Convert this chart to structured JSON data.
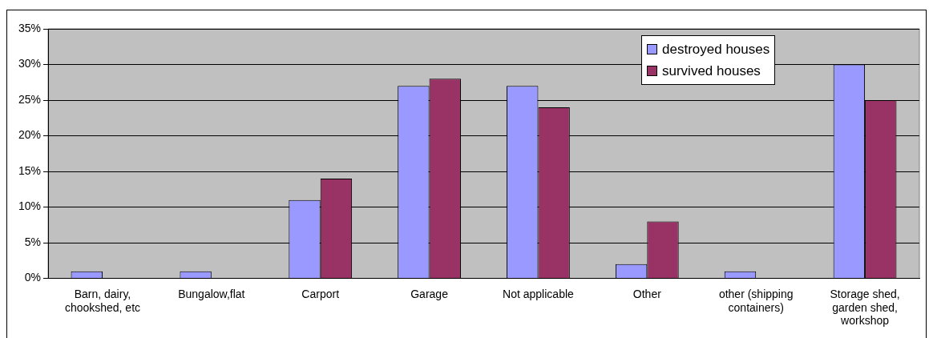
{
  "chart_data": {
    "type": "bar",
    "categories": [
      "Barn, dairy, chookshed, etc",
      "Bungalow,flat",
      "Carport",
      "Garage",
      "Not applicable",
      "Other",
      "other (shipping containers)",
      "Storage shed, garden shed, workshop"
    ],
    "series": [
      {
        "name": "destroyed houses",
        "color": "#9999ff",
        "values": [
          1,
          1,
          11,
          27,
          27,
          2,
          1,
          30
        ]
      },
      {
        "name": "survived houses",
        "color": "#993366",
        "values": [
          null,
          null,
          14,
          28,
          24,
          8,
          null,
          25
        ]
      }
    ],
    "ylim": [
      0,
      35
    ],
    "yticks": [
      {
        "value": 0,
        "label": "0%"
      },
      {
        "value": 5,
        "label": "5%"
      },
      {
        "value": 10,
        "label": "10%"
      },
      {
        "value": 15,
        "label": "15%"
      },
      {
        "value": 20,
        "label": "20%"
      },
      {
        "value": 25,
        "label": "25%"
      },
      {
        "value": 30,
        "label": "30%"
      },
      {
        "value": 35,
        "label": "35%"
      }
    ],
    "grid": "y",
    "legend": "top right"
  }
}
